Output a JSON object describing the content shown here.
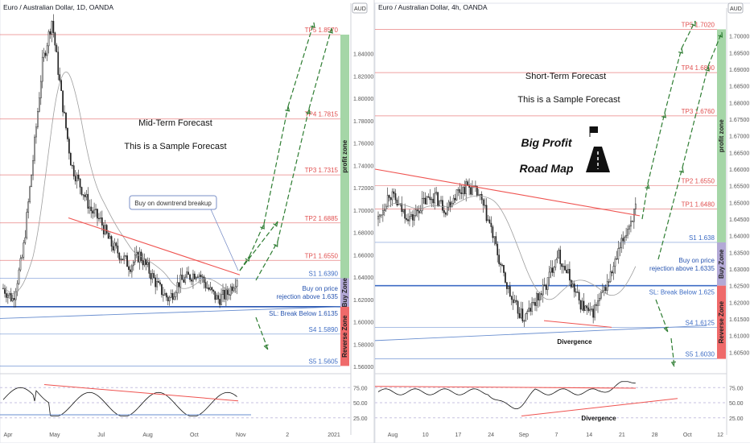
{
  "chart_data": [
    {
      "type": "candlestick",
      "symbol": "Euro / Australian Dollar, 1D, OANDA",
      "currency_badge": "AUD",
      "annotations": {
        "title": "Mid-Term Forecast",
        "subtitle": "This is a Sample Forecast",
        "callout": "Buy on downtrend breakup"
      },
      "ylim": [
        1.555,
        1.875
      ],
      "y_ticks": [
        "1.84000",
        "1.82000",
        "1.80000",
        "1.78000",
        "1.76000",
        "1.74000",
        "1.72000",
        "1.70000",
        "1.68000",
        "1.66000",
        "1.64000",
        "1.62000",
        "1.60000",
        "1.58000",
        "1.56000"
      ],
      "x_ticks": [
        "Apr",
        "May",
        "Jul",
        "Aug",
        "Oct",
        "Nov",
        "2",
        "2021"
      ],
      "levels": [
        {
          "label": "TP5 1.8570",
          "value": 1.857,
          "color": "#e04f4f"
        },
        {
          "label": "TP4 1.7815",
          "value": 1.7815,
          "color": "#e04f4f"
        },
        {
          "label": "TP3 1.7315",
          "value": 1.7315,
          "color": "#e04f4f"
        },
        {
          "label": "TP2 1.6885",
          "value": 1.6885,
          "color": "#e04f4f"
        },
        {
          "label": "TP1 1.6550",
          "value": 1.655,
          "color": "#e04f4f"
        },
        {
          "label": "S1 1.6390",
          "value": 1.639,
          "color": "#3d6cc4"
        },
        {
          "label": "SL: Break Below 1.6135",
          "value": 1.6135,
          "color": "#2855b0"
        },
        {
          "label": "S4 1.5890",
          "value": 1.589,
          "color": "#3d6cc4"
        },
        {
          "label": "S5 1.5605",
          "value": 1.5605,
          "color": "#3d6cc4"
        }
      ],
      "buy_label": [
        "Buy on price",
        "rejection above 1.635"
      ],
      "zones": [
        "profit zone",
        "Buy Zone",
        "Reverse Zone"
      ],
      "indicator": {
        "name": "RSI",
        "ticks": [
          "75.00",
          "50.00",
          "25.00"
        ]
      }
    },
    {
      "type": "candlestick",
      "symbol": "Euro / Australian Dollar, 4h, OANDA",
      "currency_badge": "AUD",
      "annotations": {
        "title": "Short-Term Forecast",
        "subtitle": "This is a Sample Forecast",
        "script": [
          "Big Profit",
          "Road Map"
        ],
        "divergence": "Divergence"
      },
      "ylim": [
        1.6,
        1.705
      ],
      "y_ticks": [
        "1.70000",
        "1.69500",
        "1.69000",
        "1.68500",
        "1.68000",
        "1.67500",
        "1.67000",
        "1.66500",
        "1.66000",
        "1.65500",
        "1.65000",
        "1.64500",
        "1.64000",
        "1.63500",
        "1.63000",
        "1.62500",
        "1.62000",
        "1.61500",
        "1.61000",
        "1.60500"
      ],
      "x_ticks": [
        "Aug",
        "10",
        "17",
        "24",
        "Sep",
        "7",
        "14",
        "21",
        "28",
        "Oct",
        "12"
      ],
      "levels": [
        {
          "label": "TP5 1.7020",
          "value": 1.702,
          "color": "#e04f4f"
        },
        {
          "label": "TP4 1.6890",
          "value": 1.689,
          "color": "#e04f4f"
        },
        {
          "label": "TP3 1.6760",
          "value": 1.676,
          "color": "#e04f4f"
        },
        {
          "label": "TP2 1.6550",
          "value": 1.655,
          "color": "#e04f4f"
        },
        {
          "label": "TP1 1.6480",
          "value": 1.648,
          "color": "#e04f4f"
        },
        {
          "label": "S1 1.638",
          "value": 1.638,
          "color": "#3d6cc4"
        },
        {
          "label": "SL: Break Below 1.625",
          "value": 1.625,
          "color": "#3d6cc4"
        },
        {
          "label": "S4 1.6125",
          "value": 1.6125,
          "color": "#3d6cc4"
        },
        {
          "label": "S5 1.6030",
          "value": 1.603,
          "color": "#3d6cc4"
        }
      ],
      "buy_label": [
        "Buy on price",
        "rejection above 1.6335"
      ],
      "zones": [
        "profit zone",
        "Buy Zone",
        "Reverse Zone"
      ],
      "indicator": {
        "name": "RSI",
        "ticks": [
          "75.00",
          "50.00",
          "25.00"
        ],
        "divergence": "Divergence"
      }
    }
  ]
}
